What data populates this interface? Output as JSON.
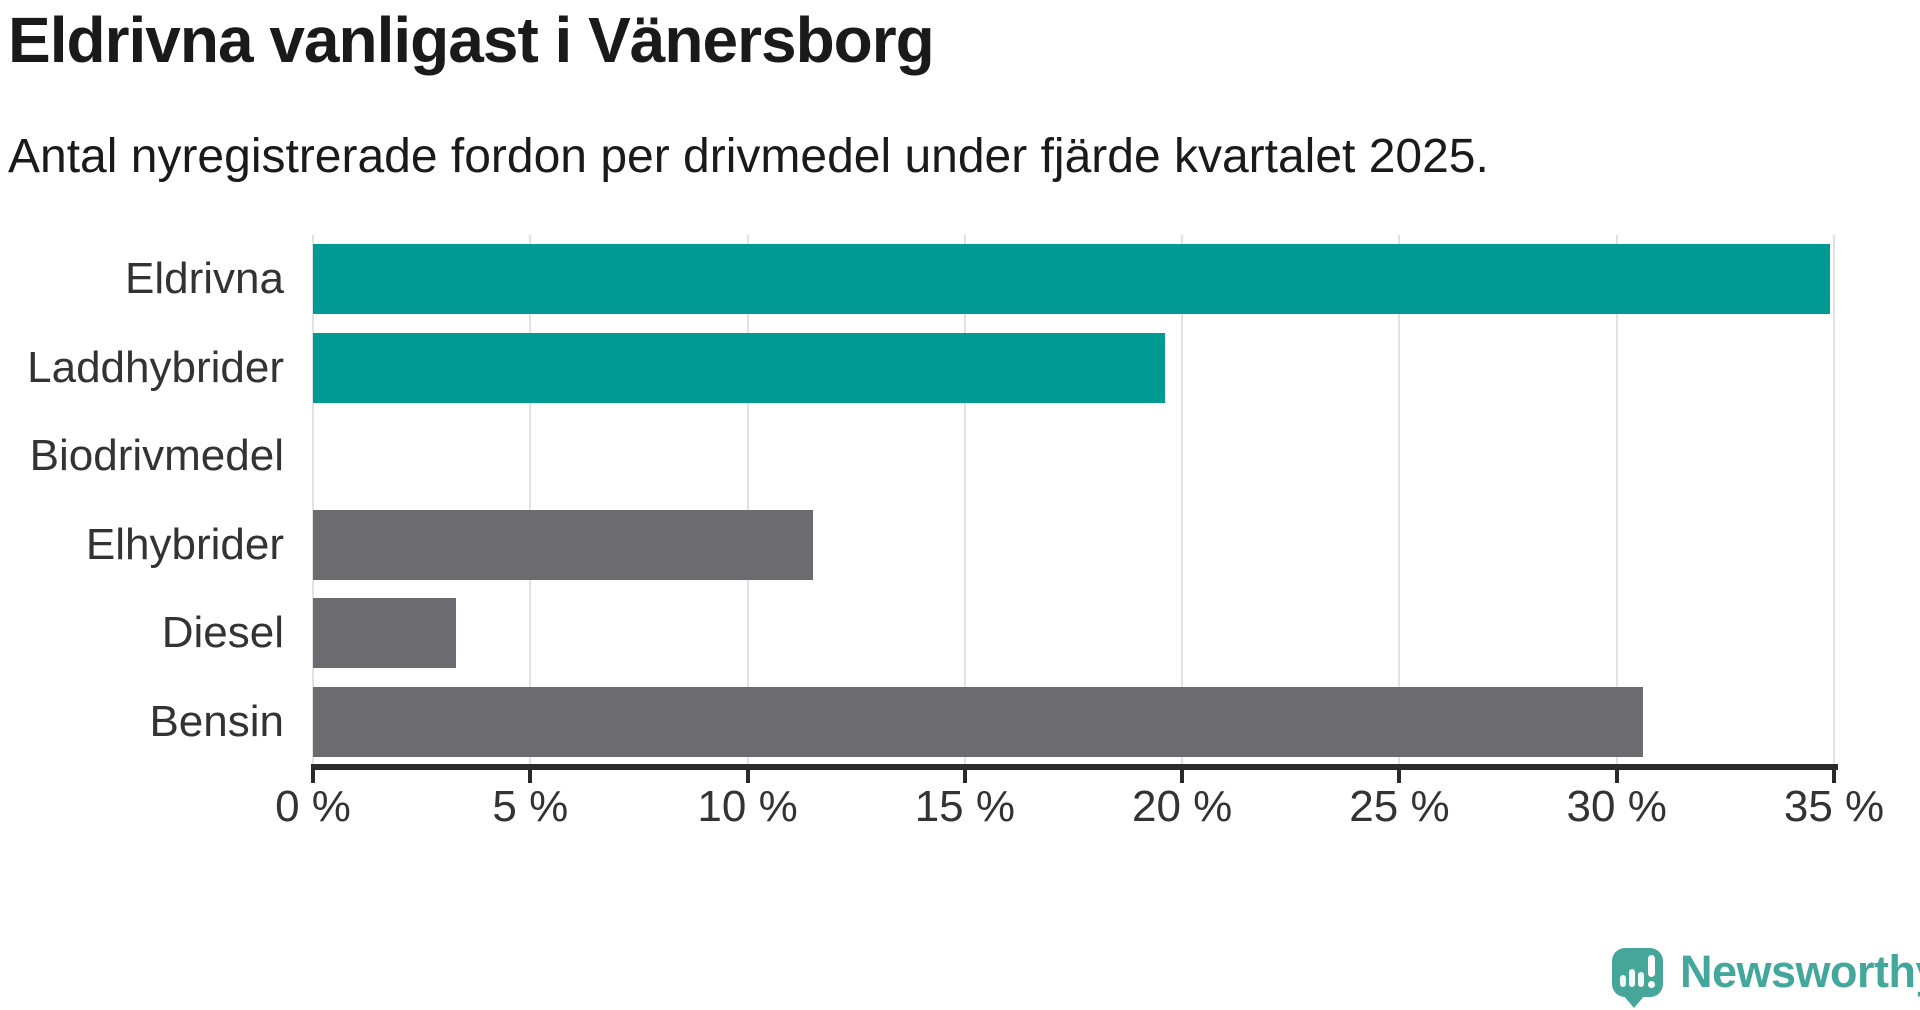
{
  "header": {
    "title": "Eldrivna vanligast i Vänersborg",
    "subtitle": "Antal nyregistrerade fordon per drivmedel under fjärde kvartalet 2025."
  },
  "chart_data": {
    "type": "bar",
    "orientation": "horizontal",
    "title": "Eldrivna vanligast i Vänersborg",
    "subtitle": "Antal nyregistrerade fordon per drivmedel under fjärde kvartalet 2025.",
    "categories": [
      "Eldrivna",
      "Laddhybrider",
      "Biodrivmedel",
      "Elhybrider",
      "Diesel",
      "Bensin"
    ],
    "values": [
      34.9,
      19.6,
      0,
      11.5,
      3.3,
      30.6
    ],
    "unit": "%",
    "bar_colors": [
      "#009a93",
      "#009a93",
      "#009a93",
      "#6c6b70",
      "#6c6b70",
      "#6c6b70"
    ],
    "xlim": [
      0,
      35
    ],
    "xticks": [
      0,
      5,
      10,
      15,
      20,
      25,
      30,
      35
    ],
    "xtick_labels": [
      "0 %",
      "5 %",
      "10 %",
      "15 %",
      "20 %",
      "25 %",
      "30 %",
      "35 %"
    ],
    "grid": true,
    "legend": false,
    "xlabel": "",
    "ylabel": ""
  },
  "colors": {
    "accent_teal": "#009a93",
    "neutral_gray": "#6c6b70",
    "gridline": "#e2e2e2",
    "axis": "#2a2a2a",
    "text": "#333333",
    "brand_teal": "#44a79b"
  },
  "branding": {
    "logo_text": "Newsworthy"
  }
}
